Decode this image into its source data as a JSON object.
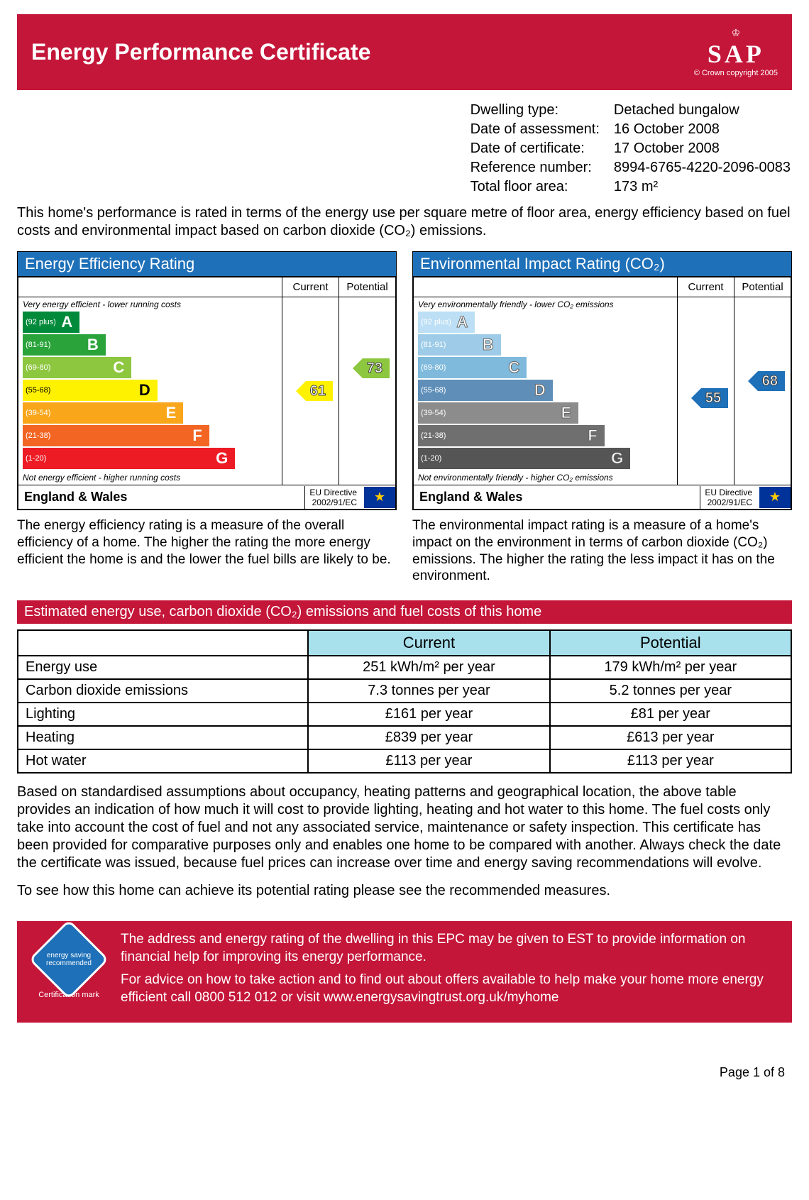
{
  "header": {
    "title": "Energy Performance Certificate",
    "logo_text": "SAP",
    "logo_sub": "© Crown copyright 2005"
  },
  "meta": {
    "rows": [
      {
        "label": "Dwelling type:",
        "value": "Detached bungalow"
      },
      {
        "label": "Date of assessment:",
        "value": "16 October 2008"
      },
      {
        "label": "Date of certificate:",
        "value": "17 October 2008"
      },
      {
        "label": "Reference number:",
        "value": "8994-6765-4220-2096-0083"
      },
      {
        "label": "Total floor area:",
        "value": "173 m²"
      }
    ]
  },
  "intro": "This home's performance is rated in terms of the energy use per square metre of floor area, energy efficiency based on fuel costs and environmental impact based on carbon dioxide (CO₂) emissions.",
  "bands": [
    {
      "range": "(92 plus)",
      "letter": "A",
      "width_pct": 22
    },
    {
      "range": "(81-91)",
      "letter": "B",
      "width_pct": 32
    },
    {
      "range": "(69-80)",
      "letter": "C",
      "width_pct": 42
    },
    {
      "range": "(55-68)",
      "letter": "D",
      "width_pct": 52
    },
    {
      "range": "(39-54)",
      "letter": "E",
      "width_pct": 62
    },
    {
      "range": "(21-38)",
      "letter": "F",
      "width_pct": 72
    },
    {
      "range": "(1-20)",
      "letter": "G",
      "width_pct": 82
    }
  ],
  "efficiency": {
    "title": "Energy Efficiency Rating",
    "top_note": "Very energy efficient - lower running costs",
    "bottom_note": "Not energy efficient - higher running costs",
    "colors": [
      "#008a3a",
      "#2aa43a",
      "#8dc63f",
      "#fff200",
      "#f9a61a",
      "#f26522",
      "#ed1c24"
    ],
    "current": {
      "value": 61,
      "band_index": 3
    },
    "potential": {
      "value": 73,
      "band_index": 2
    },
    "desc": "The energy efficiency rating is a measure of the overall efficiency of a home. The higher the rating the more energy efficient the home is and the lower the fuel bills are likely to be."
  },
  "environmental": {
    "title": "Environmental Impact Rating (CO₂)",
    "top_note": "Very environmentally friendly - lower CO₂ emissions",
    "bottom_note": "Not environmentally friendly - higher CO₂ emissions",
    "colors": [
      "#bcdff5",
      "#9ecce8",
      "#7fb9db",
      "#5f8fb8",
      "#8c8c8c",
      "#6f6f6f",
      "#555555"
    ],
    "current": {
      "value": 55,
      "band_index": 3
    },
    "potential": {
      "value": 68,
      "band_index": 3
    },
    "desc": "The environmental impact rating is a measure of a home's impact on the environment in terms of carbon dioxide (CO₂) emissions. The higher the rating the less impact it has on the environment."
  },
  "rating_headers": {
    "current": "Current",
    "potential": "Potential"
  },
  "rating_footer": {
    "region": "England & Wales",
    "directive_l1": "EU Directive",
    "directive_l2": "2002/91/EC"
  },
  "estimates": {
    "title": "Estimated energy use, carbon dioxide (CO₂) emissions and fuel costs of this home",
    "headers": [
      "",
      "Current",
      "Potential"
    ],
    "rows": [
      [
        "Energy use",
        "251 kWh/m² per year",
        "179 kWh/m² per year"
      ],
      [
        "Carbon dioxide emissions",
        "7.3 tonnes per year",
        "5.2 tonnes per year"
      ],
      [
        "Lighting",
        "£161 per year",
        "£81 per year"
      ],
      [
        "Heating",
        "£839 per year",
        "£613 per year"
      ],
      [
        "Hot water",
        "£113 per year",
        "£113 per year"
      ]
    ]
  },
  "para1": "Based on standardised assumptions about occupancy, heating patterns and geographical location, the above table provides an indication of how much it will cost to provide lighting, heating and hot water to this home. The fuel costs only take into account the cost of fuel and not any associated service, maintenance or safety inspection. This certificate has been provided for comparative purposes only and enables one home to be compared with another. Always check the date the certificate was issued, because fuel prices can increase over time and energy saving recommendations will evolve.",
  "para2": "To see how this home can achieve its potential rating please see the recommended measures.",
  "advice": {
    "logo_label": "energy saving recommended",
    "logo_sub": "Certification mark",
    "p1": "The address and energy rating of the dwelling in this EPC may be given to EST to provide information on financial help for improving its energy performance.",
    "p2": "For advice on how to take action and to find out about offers available to help make your home more energy efficient call 0800 512 012 or visit www.energysavingtrust.org.uk/myhome"
  },
  "page": "Page 1 of 8"
}
